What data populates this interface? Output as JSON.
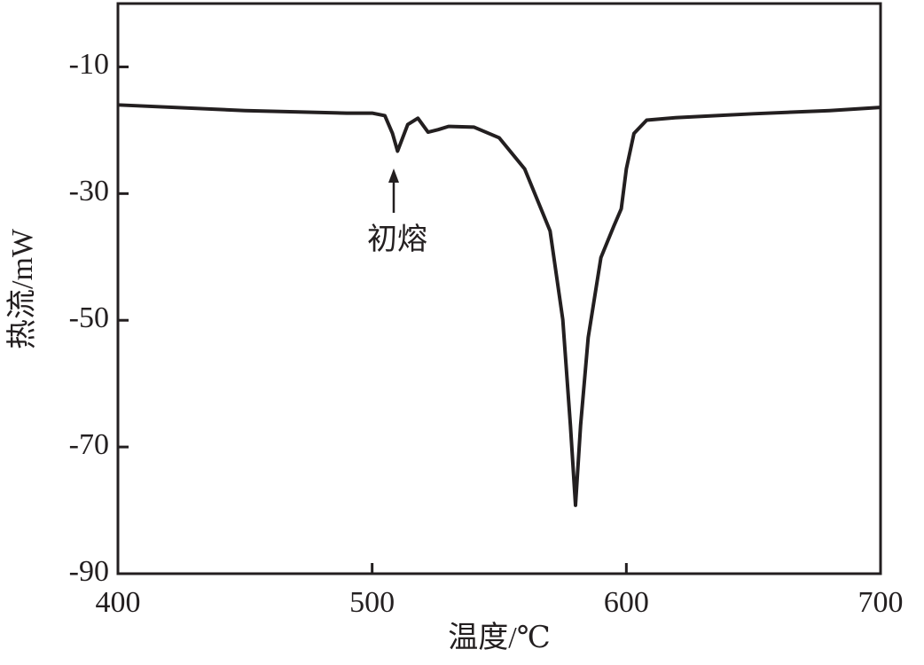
{
  "chart_data": {
    "type": "line",
    "x_label": "温度/℃",
    "y_label": "热流/mW",
    "annotation": "初熔",
    "x": [
      400,
      450,
      490,
      500,
      505,
      508,
      510,
      512,
      514,
      518,
      522,
      526,
      530,
      540,
      550,
      560,
      570,
      575,
      578,
      580,
      582,
      585,
      590,
      595,
      598,
      600,
      603,
      608,
      620,
      650,
      680,
      700
    ],
    "series": [
      {
        "color": "#231f20",
        "values": [
          -16.0,
          -16.9,
          -17.3,
          -17.3,
          -17.7,
          -20.5,
          -23.3,
          -21.2,
          -19.1,
          -18.1,
          -20.3,
          -19.9,
          -19.4,
          -19.5,
          -21.2,
          -26.1,
          -35.9,
          -49.9,
          -66.6,
          -79.2,
          -66.6,
          -52.7,
          -40.1,
          -35.2,
          -32.4,
          -26.1,
          -20.5,
          -18.4,
          -18.0,
          -17.4,
          -16.9,
          -16.4
        ]
      }
    ],
    "xlim": [
      400,
      700
    ],
    "xticks": [
      400,
      500,
      600,
      700
    ],
    "ylim": [
      -90,
      0
    ],
    "yticks": [
      -10,
      -30,
      -50,
      -70,
      -90
    ]
  }
}
